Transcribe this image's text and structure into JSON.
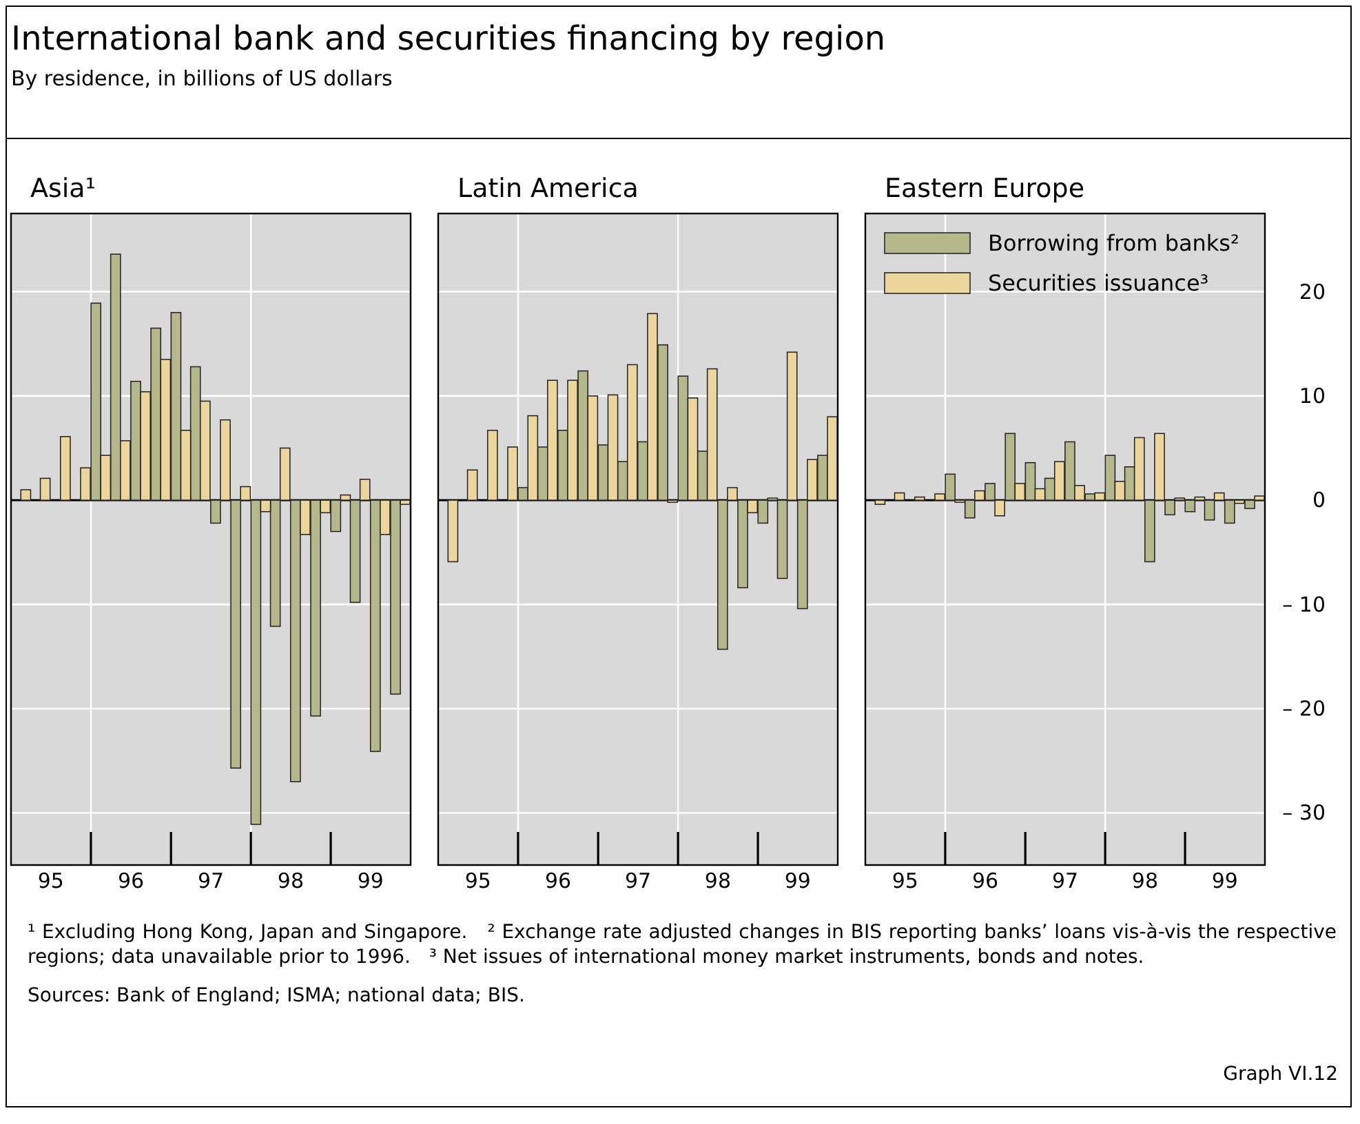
{
  "chart_data": [
    {
      "type": "other",
      "title": "International bank and securities financing by region",
      "subtitle": "By residence, in billions of US dollars",
      "annotations": [
        "¹ Excluding Hong Kong, Japan and Singapore.",
        "² Exchange rate adjusted changes in BIS reporting banks’ loans vis-à-vis the respective regions; data unavailable prior to 1996.",
        "³ Net issues of international money market instruments, bonds and notes.",
        "Sources: Bank of England; ISMA; national data; BIS.",
        "Graph VI.12"
      ]
    },
    {
      "type": "bar",
      "title": "Asia¹",
      "x": [
        "1995-02-15",
        "1995-05-15",
        "1995-08-15",
        "1995-11-15",
        "1996-02-15",
        "1996-05-15",
        "1996-08-15",
        "1996-11-15",
        "1997-02-15",
        "1997-05-15",
        "1997-08-15",
        "1997-11-15",
        "1998-02-15",
        "1998-05-15",
        "1998-08-15",
        "1998-11-15",
        "1999-02-15",
        "1999-05-15",
        "1999-08-15",
        "1999-11-15"
      ],
      "series": [
        {
          "color": "#b5b88a",
          "values": [
            null,
            null,
            null,
            null,
            18.9,
            23.6,
            11.4,
            16.5,
            18.0,
            12.8,
            -2.2,
            -25.7,
            -31.1,
            -12.1,
            -27.0,
            -20.7,
            -3.0,
            -9.8,
            -24.1,
            -18.6
          ]
        },
        {
          "color": "#ecd69c",
          "values": [
            1.0,
            2.1,
            6.1,
            3.1,
            4.3,
            5.7,
            10.4,
            13.5,
            6.7,
            9.5,
            7.7,
            1.3,
            -1.1,
            5.0,
            -3.3,
            -1.2,
            0.5,
            2.0,
            -3.3,
            -0.4
          ]
        }
      ],
      "xlim": [
        "1995",
        "2000"
      ],
      "xticks": [
        {
          "value": "1995-07-02",
          "label": "95"
        },
        {
          "value": "1996-07-02",
          "label": "96"
        },
        {
          "value": "1997-07-02",
          "label": "97"
        },
        {
          "value": "1998-07-02",
          "label": "98"
        },
        {
          "value": "1999-07-02",
          "label": "99"
        }
      ],
      "ylim": [
        -35,
        27.5
      ],
      "yticks": [
        -30,
        -20,
        -10,
        0,
        10,
        20
      ],
      "tick_labels": "x",
      "grid": "y",
      "ref_lines": [
        {
          "axis": "x",
          "value": "1996",
          "color": "#ffffff"
        },
        {
          "axis": "x",
          "value": "1998",
          "color": "#ffffff"
        }
      ]
    },
    {
      "type": "bar",
      "title": "Latin America",
      "x": [
        "1995-02-15",
        "1995-05-15",
        "1995-08-15",
        "1995-11-15",
        "1996-02-15",
        "1996-05-15",
        "1996-08-15",
        "1996-11-15",
        "1997-02-15",
        "1997-05-15",
        "1997-08-15",
        "1997-11-15",
        "1998-02-15",
        "1998-05-15",
        "1998-08-15",
        "1998-11-15",
        "1999-02-15",
        "1999-05-15",
        "1999-08-15",
        "1999-11-15"
      ],
      "series": [
        {
          "color": "#b5b88a",
          "values": [
            null,
            null,
            null,
            null,
            1.2,
            5.1,
            6.7,
            12.4,
            5.3,
            3.7,
            5.6,
            14.9,
            11.9,
            4.7,
            -14.3,
            -8.4,
            -2.2,
            -7.5,
            -10.4,
            4.3
          ]
        },
        {
          "color": "#ecd69c",
          "values": [
            -5.9,
            2.9,
            6.7,
            5.1,
            8.1,
            11.5,
            11.5,
            10.0,
            10.1,
            13.0,
            17.9,
            -0.2,
            9.8,
            12.6,
            1.2,
            -1.2,
            0.2,
            14.2,
            3.9,
            8.0
          ]
        }
      ],
      "xlim": [
        "1995",
        "2000"
      ],
      "xticks": [
        {
          "value": "1995-07-02",
          "label": "95"
        },
        {
          "value": "1996-07-02",
          "label": "96"
        },
        {
          "value": "1997-07-02",
          "label": "97"
        },
        {
          "value": "1998-07-02",
          "label": "98"
        },
        {
          "value": "1999-07-02",
          "label": "99"
        }
      ],
      "ylim": [
        -35,
        27.5
      ],
      "yticks": [
        -30,
        -20,
        -10,
        0,
        10,
        20
      ],
      "tick_labels": "x",
      "grid": "y",
      "ref_lines": [
        {
          "axis": "x",
          "value": "1996",
          "color": "#ffffff"
        },
        {
          "axis": "x",
          "value": "1998",
          "color": "#ffffff"
        }
      ]
    },
    {
      "type": "bar",
      "title": "Eastern Europe",
      "x": [
        "1995-02-15",
        "1995-05-15",
        "1995-08-15",
        "1995-11-15",
        "1996-02-15",
        "1996-05-15",
        "1996-08-15",
        "1996-11-15",
        "1997-02-15",
        "1997-05-15",
        "1997-08-15",
        "1997-11-15",
        "1998-02-15",
        "1998-05-15",
        "1998-08-15",
        "1998-11-15",
        "1999-02-15",
        "1999-05-15",
        "1999-08-15",
        "1999-11-15"
      ],
      "series": [
        {
          "name": "Borrowing from banks²",
          "color": "#b5b88a",
          "values": [
            null,
            null,
            null,
            null,
            2.5,
            -1.7,
            1.6,
            6.4,
            3.6,
            2.1,
            5.6,
            0.6,
            4.3,
            3.2,
            -5.9,
            -1.4,
            -1.1,
            -1.9,
            -2.2,
            -0.8
          ]
        },
        {
          "name": "Securities issuance³",
          "color": "#ecd69c",
          "values": [
            -0.4,
            0.7,
            0.3,
            0.6,
            -0.2,
            0.9,
            -1.5,
            1.6,
            1.1,
            3.7,
            1.4,
            0.7,
            1.8,
            6.0,
            6.4,
            0.2,
            0.3,
            0.7,
            -0.3,
            0.4
          ]
        }
      ],
      "xlim": [
        "1995",
        "2000"
      ],
      "xticks": [
        {
          "value": "1995-07-02",
          "label": "95"
        },
        {
          "value": "1996-07-02",
          "label": "96"
        },
        {
          "value": "1997-07-02",
          "label": "97"
        },
        {
          "value": "1998-07-02",
          "label": "98"
        },
        {
          "value": "1999-07-02",
          "label": "99"
        }
      ],
      "ylim": [
        -35,
        27.5
      ],
      "yticks": [
        {
          "value": -30,
          "label": "– 30"
        },
        {
          "value": -20,
          "label": "– 20"
        },
        {
          "value": -10,
          "label": "– 10"
        },
        0,
        10,
        20
      ],
      "grid": "y",
      "legend": "top left",
      "ref_lines": [
        {
          "axis": "x",
          "value": "1996",
          "color": "#ffffff"
        },
        {
          "axis": "x",
          "value": "1998",
          "color": "#ffffff"
        }
      ]
    }
  ]
}
